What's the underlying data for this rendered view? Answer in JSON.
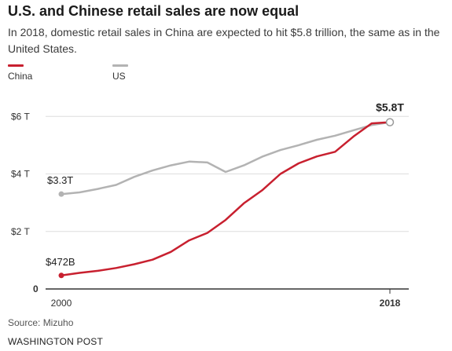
{
  "title": "U.S. and Chinese retail sales are now equal",
  "subtitle": "In 2018, domestic retail sales in China are expected to hit $5.8 trillion, the same as in the United States.",
  "source": "Source: Mizuho",
  "publisher": "WASHINGTON POST",
  "colors": {
    "china": "#c8202f",
    "us": "#b3b3b3",
    "grid": "#dddddd",
    "axis": "#333333"
  },
  "chart_data": {
    "type": "line",
    "title": "U.S. and Chinese retail sales are now equal",
    "xlabel": "",
    "ylabel": "",
    "x": [
      2000,
      2001,
      2002,
      2003,
      2004,
      2005,
      2006,
      2007,
      2008,
      2009,
      2010,
      2011,
      2012,
      2013,
      2014,
      2015,
      2016,
      2017,
      2018
    ],
    "xlim": [
      2000,
      2018
    ],
    "ylim": [
      0,
      6.5
    ],
    "x_ticks": [
      {
        "value": 2000,
        "label": "2000"
      },
      {
        "value": 2018,
        "label": "2018"
      }
    ],
    "y_ticks": [
      {
        "value": 0,
        "label": "0"
      },
      {
        "value": 2,
        "label": "$2 T"
      },
      {
        "value": 4,
        "label": "$4 T"
      },
      {
        "value": 6,
        "label": "$6 T"
      }
    ],
    "grid": true,
    "legend": "top-left",
    "series": [
      {
        "name": "China",
        "color": "#c8202f",
        "values": [
          0.47,
          0.56,
          0.63,
          0.73,
          0.86,
          1.02,
          1.29,
          1.69,
          1.95,
          2.4,
          2.98,
          3.43,
          4.0,
          4.37,
          4.61,
          4.77,
          5.3,
          5.76,
          5.8
        ]
      },
      {
        "name": "US",
        "color": "#b3b3b3",
        "values": [
          3.3,
          3.36,
          3.48,
          3.62,
          3.9,
          4.12,
          4.3,
          4.43,
          4.4,
          4.07,
          4.3,
          4.6,
          4.83,
          5.0,
          5.19,
          5.33,
          5.52,
          5.7,
          5.8
        ]
      }
    ],
    "annotations": [
      {
        "text": "$472B",
        "series": "China",
        "x": 2000
      },
      {
        "text": "$3.3T",
        "series": "US",
        "x": 2000
      },
      {
        "text": "$5.8T",
        "series": "both",
        "x": 2018
      }
    ]
  }
}
